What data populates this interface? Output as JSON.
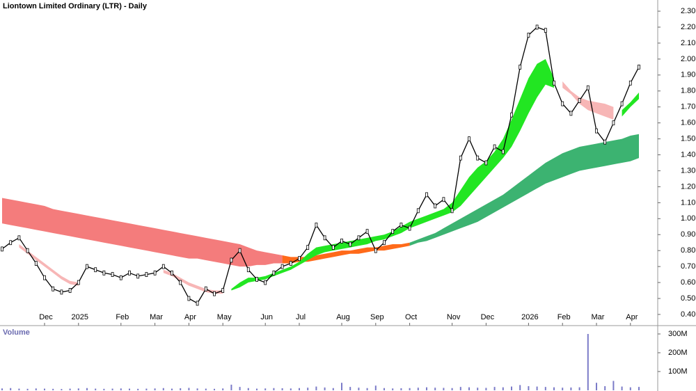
{
  "chart_data": {
    "type": "price-volume",
    "title": "Liontown Limited Ordinary (LTR) - Daily",
    "categories": [
      null,
      null,
      null,
      null,
      null,
      "Dec",
      null,
      null,
      null,
      "2025",
      null,
      null,
      null,
      null,
      "Feb",
      null,
      null,
      null,
      "Mar",
      null,
      null,
      null,
      "Apr",
      null,
      null,
      null,
      "May",
      null,
      null,
      null,
      null,
      "Jun",
      null,
      null,
      null,
      "Jul",
      null,
      null,
      null,
      null,
      "Aug",
      null,
      null,
      null,
      "Sep",
      null,
      null,
      null,
      "Oct",
      null,
      null,
      null,
      null,
      "Nov",
      null,
      null,
      null,
      "Dec",
      null,
      null,
      null,
      null,
      "2026",
      null,
      null,
      null,
      "Feb",
      null,
      null,
      null,
      "Mar",
      null,
      null,
      null,
      "Apr",
      null
    ],
    "price": {
      "color": "#000000",
      "values": [
        0.81,
        0.85,
        0.88,
        0.8,
        0.72,
        0.63,
        0.56,
        0.54,
        0.55,
        0.6,
        0.7,
        0.68,
        0.66,
        0.65,
        0.63,
        0.66,
        0.64,
        0.65,
        0.66,
        0.7,
        0.66,
        0.6,
        0.5,
        0.47,
        0.56,
        0.53,
        0.55,
        0.74,
        0.8,
        0.68,
        0.62,
        0.6,
        0.66,
        0.7,
        0.72,
        0.75,
        0.82,
        0.96,
        0.88,
        0.82,
        0.86,
        0.84,
        0.88,
        0.92,
        0.8,
        0.85,
        0.92,
        0.96,
        0.94,
        1.05,
        1.15,
        1.08,
        1.12,
        1.05,
        1.38,
        1.5,
        1.38,
        1.35,
        1.45,
        1.42,
        1.65,
        1.95,
        2.15,
        2.2,
        2.18,
        1.85,
        1.72,
        1.66,
        1.74,
        1.82,
        1.55,
        1.48,
        1.6,
        1.72,
        1.85,
        1.95
      ]
    },
    "bands": [
      {
        "color": "#f47c7c",
        "upper": [
          1.13,
          1.12,
          1.11,
          1.1,
          1.09,
          1.08,
          1.06,
          1.05,
          1.04,
          1.03,
          1.02,
          1.01,
          1.0,
          0.99,
          0.98,
          0.97,
          0.96,
          0.95,
          0.94,
          0.93,
          0.92,
          0.91,
          0.9,
          0.89,
          0.88,
          0.87,
          0.86,
          0.85,
          0.84,
          0.82,
          0.8,
          0.79,
          0.78,
          0.77,
          null,
          null,
          null,
          null,
          null,
          null,
          null,
          null,
          null,
          null,
          null,
          null,
          null,
          null,
          null,
          null,
          null,
          null,
          null,
          null,
          null,
          null,
          null,
          null,
          null,
          null,
          null,
          null,
          null,
          null,
          null,
          null,
          null,
          null,
          null,
          null,
          null,
          null,
          null,
          null,
          null,
          null
        ],
        "lower": [
          0.97,
          0.96,
          0.95,
          0.94,
          0.93,
          0.92,
          0.91,
          0.9,
          0.89,
          0.88,
          0.87,
          0.86,
          0.85,
          0.84,
          0.83,
          0.82,
          0.81,
          0.8,
          0.79,
          0.78,
          0.77,
          0.76,
          0.75,
          0.75,
          0.74,
          0.73,
          0.72,
          0.71,
          0.7,
          0.7,
          0.71,
          0.71,
          0.72,
          0.72,
          null,
          null,
          null,
          null,
          null,
          null,
          null,
          null,
          null,
          null,
          null,
          null,
          null,
          null,
          null,
          null,
          null,
          null,
          null,
          null,
          null,
          null,
          null,
          null,
          null,
          null,
          null,
          null,
          null,
          null,
          null,
          null,
          null,
          null,
          null,
          null,
          null,
          null,
          null,
          null,
          null,
          null
        ]
      },
      {
        "color": "#ff6a1a",
        "upper": [
          null,
          null,
          null,
          null,
          null,
          null,
          null,
          null,
          null,
          null,
          null,
          null,
          null,
          null,
          null,
          null,
          null,
          null,
          null,
          null,
          null,
          null,
          null,
          null,
          null,
          null,
          null,
          null,
          null,
          null,
          null,
          null,
          null,
          0.77,
          0.76,
          0.76,
          0.76,
          0.77,
          0.78,
          0.79,
          0.8,
          0.8,
          0.81,
          0.82,
          0.82,
          0.83,
          0.84,
          0.84,
          0.85,
          null,
          null,
          null,
          null,
          null,
          null,
          null,
          null,
          null,
          null,
          null,
          null,
          null,
          null,
          null,
          null,
          null,
          null,
          null,
          null,
          null,
          null,
          null,
          null,
          null,
          null,
          null
        ],
        "lower": [
          null,
          null,
          null,
          null,
          null,
          null,
          null,
          null,
          null,
          null,
          null,
          null,
          null,
          null,
          null,
          null,
          null,
          null,
          null,
          null,
          null,
          null,
          null,
          null,
          null,
          null,
          null,
          null,
          null,
          null,
          null,
          null,
          null,
          0.72,
          0.72,
          0.73,
          0.73,
          0.74,
          0.75,
          0.76,
          0.77,
          0.78,
          0.78,
          0.79,
          0.8,
          0.8,
          0.81,
          0.82,
          0.83,
          null,
          null,
          null,
          null,
          null,
          null,
          null,
          null,
          null,
          null,
          null,
          null,
          null,
          null,
          null,
          null,
          null,
          null,
          null,
          null,
          null,
          null,
          null,
          null,
          null,
          null,
          null
        ]
      },
      {
        "color": "#3cb371",
        "upper": [
          null,
          null,
          null,
          null,
          null,
          null,
          null,
          null,
          null,
          null,
          null,
          null,
          null,
          null,
          null,
          null,
          null,
          null,
          null,
          null,
          null,
          null,
          null,
          null,
          null,
          null,
          null,
          null,
          null,
          null,
          null,
          null,
          null,
          null,
          null,
          null,
          null,
          null,
          null,
          null,
          null,
          null,
          null,
          null,
          null,
          null,
          null,
          null,
          0.85,
          0.87,
          0.89,
          0.91,
          0.94,
          0.97,
          1.0,
          1.03,
          1.06,
          1.09,
          1.12,
          1.15,
          1.19,
          1.23,
          1.27,
          1.31,
          1.35,
          1.38,
          1.41,
          1.43,
          1.45,
          1.46,
          1.47,
          1.48,
          1.49,
          1.5,
          1.52,
          1.53
        ],
        "lower": [
          null,
          null,
          null,
          null,
          null,
          null,
          null,
          null,
          null,
          null,
          null,
          null,
          null,
          null,
          null,
          null,
          null,
          null,
          null,
          null,
          null,
          null,
          null,
          null,
          null,
          null,
          null,
          null,
          null,
          null,
          null,
          null,
          null,
          null,
          null,
          null,
          null,
          null,
          null,
          null,
          null,
          null,
          null,
          null,
          null,
          null,
          null,
          null,
          0.83,
          0.85,
          0.86,
          0.88,
          0.9,
          0.92,
          0.94,
          0.96,
          0.98,
          1.01,
          1.04,
          1.07,
          1.1,
          1.13,
          1.16,
          1.19,
          1.22,
          1.24,
          1.26,
          1.28,
          1.3,
          1.31,
          1.32,
          1.33,
          1.34,
          1.35,
          1.36,
          1.38
        ]
      },
      {
        "color": "#f7b6b6",
        "upper": [
          null,
          null,
          0.84,
          0.8,
          0.76,
          0.72,
          0.68,
          0.64,
          0.61,
          0.6,
          null,
          null,
          null,
          null,
          null,
          null,
          null,
          null,
          null,
          0.68,
          0.66,
          0.63,
          0.6,
          0.58,
          0.56,
          0.55,
          0.55,
          null,
          null,
          null,
          null,
          null,
          null,
          null,
          null,
          null,
          null,
          null,
          null,
          null,
          null,
          null,
          null,
          null,
          null,
          null,
          null,
          null,
          null,
          null,
          null,
          null,
          null,
          null,
          null,
          null,
          null,
          null,
          null,
          null,
          null,
          null,
          null,
          null,
          null,
          null,
          1.86,
          1.8,
          1.76,
          1.74,
          1.73,
          1.72,
          1.7,
          null,
          null,
          null
        ],
        "lower": [
          null,
          null,
          0.82,
          0.78,
          0.74,
          0.7,
          0.66,
          0.62,
          0.59,
          0.58,
          null,
          null,
          null,
          null,
          null,
          null,
          null,
          null,
          null,
          0.66,
          0.64,
          0.61,
          0.58,
          0.56,
          0.54,
          0.53,
          0.53,
          null,
          null,
          null,
          null,
          null,
          null,
          null,
          null,
          null,
          null,
          null,
          null,
          null,
          null,
          null,
          null,
          null,
          null,
          null,
          null,
          null,
          null,
          null,
          null,
          null,
          null,
          null,
          null,
          null,
          null,
          null,
          null,
          null,
          null,
          null,
          null,
          null,
          null,
          null,
          1.82,
          1.78,
          1.72,
          1.68,
          1.66,
          1.64,
          1.62,
          null,
          null,
          null
        ]
      },
      {
        "color": "#22e622",
        "upper": [
          null,
          null,
          null,
          null,
          null,
          null,
          null,
          null,
          null,
          null,
          null,
          null,
          null,
          null,
          null,
          null,
          null,
          null,
          null,
          null,
          null,
          null,
          null,
          null,
          null,
          null,
          null,
          0.56,
          0.6,
          0.63,
          0.63,
          0.64,
          0.66,
          0.68,
          0.7,
          0.73,
          0.78,
          0.82,
          0.83,
          0.84,
          0.85,
          0.86,
          0.87,
          0.88,
          0.89,
          0.9,
          0.92,
          0.95,
          0.98,
          1.0,
          1.02,
          1.04,
          1.06,
          1.1,
          1.18,
          1.26,
          1.32,
          1.36,
          1.42,
          1.5,
          1.62,
          1.75,
          1.88,
          1.97,
          2.0,
          1.88,
          null,
          null,
          null,
          null,
          null,
          null,
          null,
          1.68,
          1.73,
          1.79
        ],
        "lower": [
          null,
          null,
          null,
          null,
          null,
          null,
          null,
          null,
          null,
          null,
          null,
          null,
          null,
          null,
          null,
          null,
          null,
          null,
          null,
          null,
          null,
          null,
          null,
          null,
          null,
          null,
          null,
          0.55,
          0.57,
          0.6,
          0.61,
          0.62,
          0.64,
          0.66,
          0.68,
          0.71,
          0.74,
          0.77,
          0.79,
          0.8,
          0.81,
          0.82,
          0.83,
          0.84,
          0.86,
          0.87,
          0.89,
          0.91,
          0.94,
          0.96,
          0.98,
          1.0,
          1.02,
          1.04,
          1.08,
          1.14,
          1.2,
          1.26,
          1.32,
          1.38,
          1.45,
          1.55,
          1.66,
          1.76,
          1.84,
          1.82,
          null,
          null,
          null,
          null,
          null,
          null,
          null,
          1.64,
          1.7,
          1.75
        ]
      }
    ],
    "ylim": [
      0.33,
      2.37
    ],
    "yticks": [
      {
        "value": 0.4,
        "label": "0.40"
      },
      {
        "value": 0.5,
        "label": "0.50"
      },
      {
        "value": 0.6,
        "label": "0.60"
      },
      {
        "value": 0.7,
        "label": "0.70"
      },
      {
        "value": 0.8,
        "label": "0.80"
      },
      {
        "value": 0.9,
        "label": "0.90"
      },
      {
        "value": 1.0,
        "label": "1.00"
      },
      {
        "value": 1.1,
        "label": "1.10"
      },
      {
        "value": 1.2,
        "label": "1.20"
      },
      {
        "value": 1.3,
        "label": "1.30"
      },
      {
        "value": 1.4,
        "label": "1.40"
      },
      {
        "value": 1.5,
        "label": "1.50"
      },
      {
        "value": 1.6,
        "label": "1.60"
      },
      {
        "value": 1.7,
        "label": "1.70"
      },
      {
        "value": 1.8,
        "label": "1.80"
      },
      {
        "value": 1.9,
        "label": "1.90"
      },
      {
        "value": 2.0,
        "label": "2.00"
      },
      {
        "value": 2.1,
        "label": "2.10"
      },
      {
        "value": 2.2,
        "label": "2.20"
      },
      {
        "value": 2.3,
        "label": "2.30"
      }
    ],
    "volume": {
      "label": "Volume",
      "color": "#7b7bc8",
      "values": [
        10,
        12,
        9,
        8,
        10,
        9,
        8,
        7,
        9,
        10,
        12,
        9,
        8,
        9,
        10,
        9,
        8,
        9,
        10,
        12,
        9,
        11,
        13,
        10,
        9,
        8,
        10,
        30,
        18,
        12,
        9,
        10,
        12,
        11,
        10,
        12,
        14,
        20,
        15,
        12,
        40,
        18,
        14,
        12,
        25,
        12,
        10,
        11,
        12,
        14,
        16,
        14,
        13,
        12,
        18,
        16,
        14,
        13,
        18,
        16,
        20,
        28,
        22,
        20,
        18,
        16,
        14,
        15,
        16,
        300,
        40,
        22,
        50,
        20,
        16,
        18
      ],
      "ylim": [
        0,
        337
      ],
      "yticks": [
        {
          "value": 100,
          "label": "100M"
        },
        {
          "value": 200,
          "label": "200M"
        },
        {
          "value": 300,
          "label": "300M"
        }
      ]
    }
  }
}
